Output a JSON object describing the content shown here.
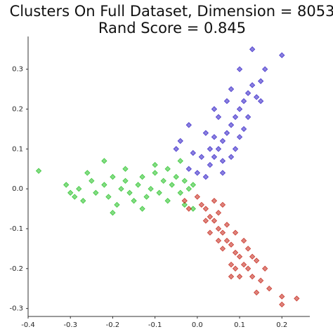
{
  "chart_data": {
    "type": "scatter",
    "title": [
      "Clusters On Full Dataset, Dimension = 8053",
      "Rand Score = 0.845"
    ],
    "xlim": [
      -0.4,
      0.266
    ],
    "ylim": [
      -0.32,
      0.382
    ],
    "xticks": [
      -0.4,
      -0.3,
      -0.2,
      -0.1,
      {
        "value": 0,
        "label": "0.0"
      },
      0.1,
      0.2
    ],
    "yticks": [
      -0.3,
      -0.2,
      -0.1,
      {
        "value": 0,
        "label": "0.0"
      },
      0.1,
      0.2,
      0.3
    ],
    "series": [
      {
        "color": "#2a18c4",
        "x": [
          0.02,
          0.03,
          0.04,
          0.05,
          0.06,
          0.07,
          0.08,
          0.09,
          0.1,
          0.11,
          0.12,
          0.13,
          0.15,
          0.16,
          0.2,
          0.14,
          0.09,
          0.1,
          0.06,
          0.03,
          0.02,
          0.05,
          0.04,
          -0.05,
          -0.04,
          -0.02,
          -0.01,
          0.0,
          0.01,
          0.08,
          0.12,
          0.1,
          0.13,
          0.07,
          0.08,
          0.11,
          0.15,
          0.06,
          -0.02,
          0.04
        ],
        "y": [
          0.03,
          0.06,
          0.08,
          0.1,
          0.12,
          0.14,
          0.16,
          0.18,
          0.2,
          0.22,
          0.24,
          0.26,
          0.27,
          0.3,
          0.335,
          0.23,
          0.1,
          0.13,
          0.07,
          0.1,
          0.14,
          0.18,
          0.2,
          0.1,
          0.12,
          0.16,
          0.09,
          0.04,
          0.08,
          0.08,
          0.18,
          0.3,
          0.35,
          0.22,
          0.25,
          0.15,
          0.22,
          0.04,
          0.05,
          0.13
        ]
      },
      {
        "color": "#1fbf1f",
        "x": [
          -0.375,
          -0.31,
          -0.3,
          -0.28,
          -0.27,
          -0.25,
          -0.24,
          -0.22,
          -0.21,
          -0.2,
          -0.19,
          -0.18,
          -0.17,
          -0.16,
          -0.15,
          -0.14,
          -0.13,
          -0.12,
          -0.11,
          -0.1,
          -0.09,
          -0.08,
          -0.07,
          -0.06,
          -0.05,
          -0.04,
          -0.03,
          -0.02,
          -0.01,
          -0.22,
          -0.2,
          -0.13,
          -0.1,
          -0.04,
          -0.01,
          -0.26,
          -0.29,
          -0.17,
          -0.07,
          -0.03
        ],
        "y": [
          0.045,
          0.01,
          -0.01,
          0.0,
          -0.03,
          0.02,
          -0.01,
          0.01,
          -0.02,
          0.03,
          -0.04,
          0.0,
          0.02,
          -0.01,
          -0.03,
          0.01,
          0.03,
          -0.02,
          0.0,
          0.04,
          -0.01,
          0.02,
          -0.03,
          0.01,
          0.03,
          -0.01,
          0.02,
          0.0,
          0.01,
          0.07,
          -0.06,
          -0.05,
          0.06,
          0.07,
          -0.05,
          0.04,
          -0.02,
          0.05,
          0.05,
          -0.04
        ]
      },
      {
        "color": "#c21e10",
        "x": [
          0.0,
          0.01,
          0.02,
          0.03,
          0.04,
          0.05,
          0.06,
          0.07,
          0.08,
          0.09,
          0.1,
          0.11,
          0.12,
          0.13,
          0.15,
          0.17,
          0.2,
          0.235,
          0.2,
          0.05,
          0.07,
          0.03,
          0.06,
          0.09,
          0.12,
          0.1,
          0.08,
          0.14,
          0.02,
          -0.02,
          -0.03,
          0.04,
          0.08,
          0.11,
          0.14,
          0.16,
          0.05,
          0.13,
          0.06,
          0.09
        ],
        "y": [
          -0.02,
          -0.04,
          -0.05,
          -0.07,
          -0.08,
          -0.1,
          -0.11,
          -0.13,
          -0.14,
          -0.16,
          -0.17,
          -0.19,
          -0.2,
          -0.22,
          -0.23,
          -0.25,
          -0.27,
          -0.275,
          -0.29,
          -0.06,
          -0.09,
          -0.11,
          -0.15,
          -0.11,
          -0.15,
          -0.22,
          -0.22,
          -0.18,
          -0.08,
          -0.05,
          -0.03,
          -0.03,
          -0.19,
          -0.13,
          -0.26,
          -0.2,
          -0.13,
          -0.17,
          -0.04,
          -0.2
        ]
      }
    ]
  }
}
